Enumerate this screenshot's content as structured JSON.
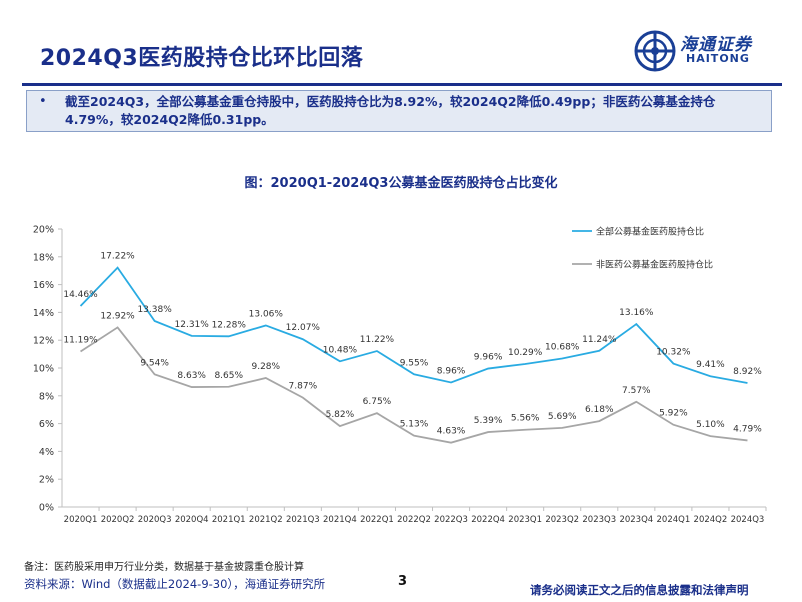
{
  "header": {
    "title": "2024Q3医药股持仓比环比回落",
    "logo_cn": "海通证券",
    "logo_en": "HAITONG"
  },
  "summary": {
    "bullet": "•",
    "text": "截至2024Q3，全部公募基金重仓持股中，医药股持仓比为8.92%，较2024Q2降低0.49pp；非医药公募基金持仓4.79%，较2024Q2降低0.31pp。"
  },
  "chart_title": "图：2020Q1-2024Q3公募基金医药股持仓占比变化",
  "chart_data": {
    "type": "line",
    "categories": [
      "2020Q1",
      "2020Q2",
      "2020Q3",
      "2020Q4",
      "2021Q1",
      "2021Q2",
      "2021Q3",
      "2021Q4",
      "2022Q1",
      "2022Q2",
      "2022Q3",
      "2022Q4",
      "2023Q1",
      "2023Q2",
      "2023Q3",
      "2023Q4",
      "2024Q1",
      "2024Q2",
      "2024Q3"
    ],
    "series": [
      {
        "name": "全部公募基金医药股持仓比",
        "color": "#29abe2",
        "values": [
          14.46,
          17.22,
          13.38,
          12.31,
          12.28,
          13.06,
          12.07,
          10.48,
          11.22,
          9.55,
          8.96,
          9.96,
          10.29,
          10.68,
          11.24,
          13.16,
          10.32,
          9.41,
          8.92
        ],
        "labels": [
          "14.46%",
          "17.22%",
          "13.38%",
          "12.31%",
          "12.28%",
          "13.06%",
          "12.07%",
          "10.48%",
          "11.22%",
          "9.55%",
          "8.96%",
          "9.96%",
          "10.29%",
          "10.68%",
          "11.24%",
          "13.16%",
          "10.32%",
          "9.41%",
          "8.92%"
        ]
      },
      {
        "name": "非医药公募基金医药股持仓比",
        "color": "#a6a6a6",
        "values": [
          11.19,
          12.92,
          9.54,
          8.63,
          8.65,
          9.28,
          7.87,
          5.82,
          6.75,
          5.13,
          4.63,
          5.39,
          5.56,
          5.69,
          6.18,
          7.57,
          5.92,
          5.1,
          4.79
        ],
        "labels": [
          "11.19%",
          "12.92%",
          "9.54%",
          "8.63%",
          "8.65%",
          "9.28%",
          "7.87%",
          "5.82%",
          "6.75%",
          "5.13%",
          "4.63%",
          "5.39%",
          "5.56%",
          "5.69%",
          "6.18%",
          "7.57%",
          "5.92%",
          "5.10%",
          "4.79%"
        ]
      }
    ],
    "y_ticks": [
      "0%",
      "2%",
      "4%",
      "6%",
      "8%",
      "10%",
      "12%",
      "14%",
      "16%",
      "18%",
      "20%"
    ],
    "ylim": [
      0,
      20
    ],
    "grid": false,
    "legend_position": "top-right"
  },
  "footer": {
    "note": "备注：医药股采用申万行业分类，数据基于基金披露重仓股计算",
    "source": "资料来源：Wind（数据截止2024-9-30），海通证券研究所",
    "page": "3",
    "disclaimer": "请务必阅读正文之后的信息披露和法律声明"
  }
}
